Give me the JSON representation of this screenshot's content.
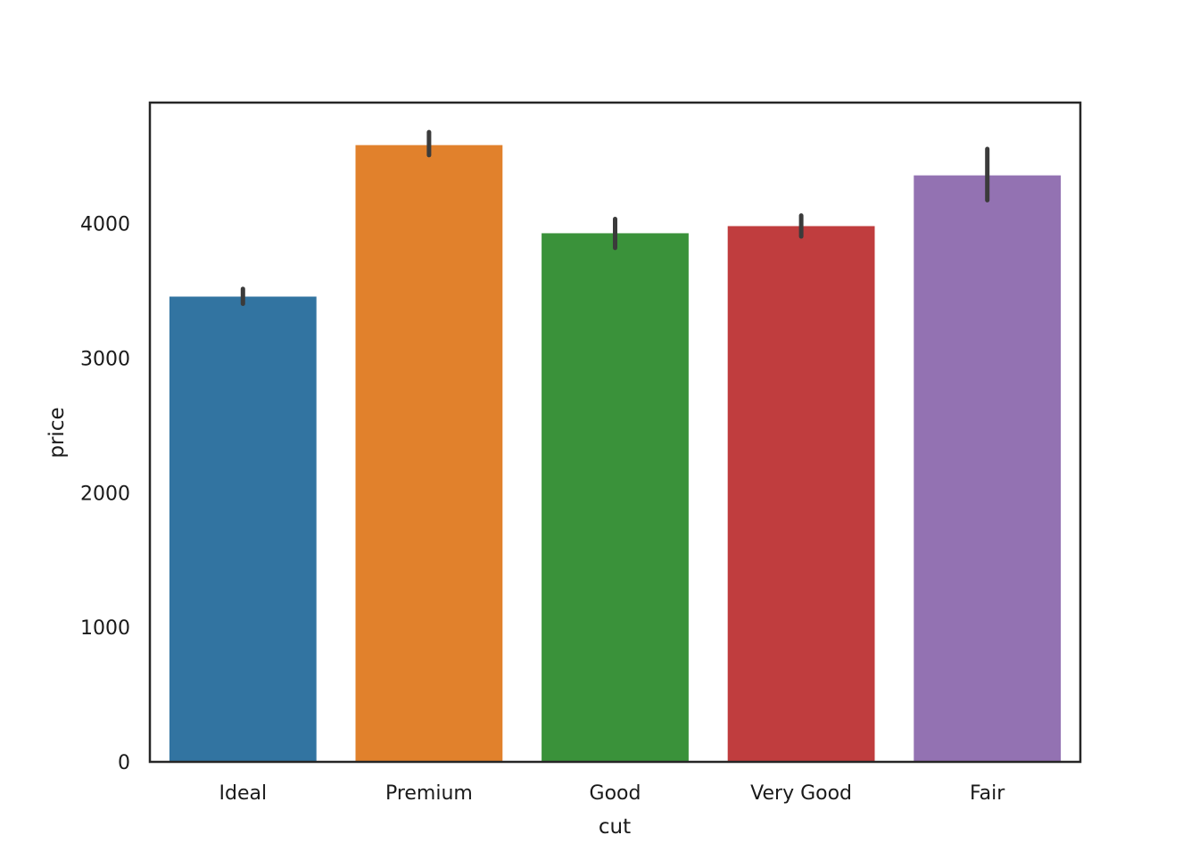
{
  "chart_data": {
    "type": "bar",
    "title": "",
    "xlabel": "cut",
    "ylabel": "price",
    "categories": [
      "Ideal",
      "Premium",
      "Good",
      "Very Good",
      "Fair"
    ],
    "values": [
      3458,
      4584,
      3929,
      3982,
      4359
    ],
    "error_bars": [
      {
        "low": 3405,
        "high": 3515
      },
      {
        "low": 4510,
        "high": 4680
      },
      {
        "low": 3820,
        "high": 4035
      },
      {
        "low": 3905,
        "high": 4060
      },
      {
        "low": 4175,
        "high": 4555
      }
    ],
    "colors": [
      "#3274a1",
      "#e1812c",
      "#3a923a",
      "#c03d3e",
      "#9372b2"
    ],
    "error_bar_color": "#3b3b3b",
    "ylim": [
      0,
      4900
    ],
    "yticks": [
      0,
      1000,
      2000,
      3000,
      4000
    ],
    "ytick_labels": [
      "0",
      "1000",
      "2000",
      "3000",
      "4000"
    ],
    "grid": false,
    "legend": "none"
  }
}
